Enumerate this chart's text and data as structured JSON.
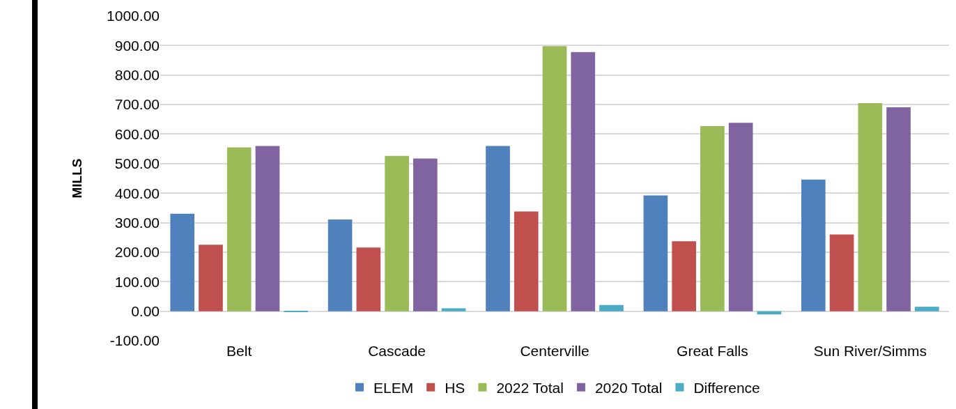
{
  "chart_data": {
    "type": "bar",
    "ylabel": "MILLS",
    "categories": [
      "Belt",
      "Cascade",
      "Centerville",
      "Great Falls",
      "Sun River/Simms"
    ],
    "series": [
      {
        "name": "ELEM",
        "color": "#4f81bd",
        "values": [
          330,
          311,
          560,
          392,
          446
        ]
      },
      {
        "name": "HS",
        "color": "#c0504d",
        "values": [
          225,
          216,
          338,
          237,
          260
        ]
      },
      {
        "name": "2022 Total",
        "color": "#9bbb59",
        "values": [
          555,
          526,
          898,
          627,
          705
        ]
      },
      {
        "name": "2020 Total",
        "color": "#8064a2",
        "values": [
          560,
          517,
          878,
          638,
          691
        ]
      },
      {
        "name": "Difference",
        "color": "#4bacc6",
        "values": [
          -3,
          10,
          21,
          -11,
          15
        ]
      }
    ],
    "ylim": [
      -100,
      1000
    ],
    "yticks": [
      {
        "value": -100,
        "label": "-100.00"
      },
      {
        "value": 0,
        "label": "0.00"
      },
      {
        "value": 100,
        "label": "100.00"
      },
      {
        "value": 200,
        "label": "200.00"
      },
      {
        "value": 300,
        "label": "300.00"
      },
      {
        "value": 400,
        "label": "400.00"
      },
      {
        "value": 500,
        "label": "500.00"
      },
      {
        "value": 600,
        "label": "600.00"
      },
      {
        "value": 700,
        "label": "700.00"
      },
      {
        "value": 800,
        "label": "800.00"
      },
      {
        "value": 900,
        "label": "900.00"
      },
      {
        "value": 1000,
        "label": "1000.00"
      }
    ],
    "grid": "y",
    "legend": "bottom"
  }
}
